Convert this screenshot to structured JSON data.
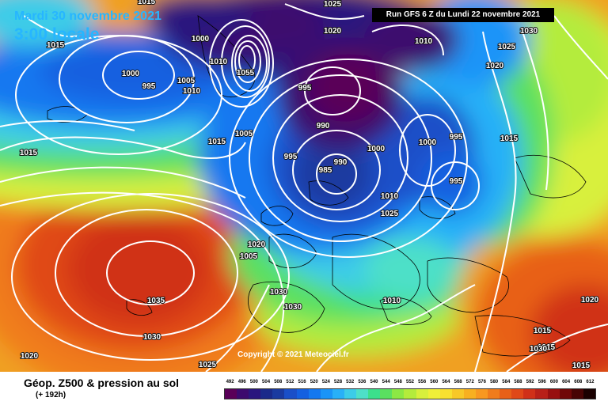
{
  "header": {
    "date": "Mardi 30 novembre 2021",
    "time": "3:00 locale",
    "run": "Run GFS 6 Z du Lundi 22 novembre 2021"
  },
  "copyright": "Copyright © 2021 Meteociel.fr",
  "footer": {
    "title": "Géop. Z500 & pression au sol",
    "subtitle": "(+ 192h)"
  },
  "legend": {
    "values": [
      "492",
      "496",
      "500",
      "504",
      "508",
      "512",
      "516",
      "520",
      "524",
      "528",
      "532",
      "536",
      "540",
      "544",
      "548",
      "552",
      "556",
      "560",
      "564",
      "568",
      "572",
      "576",
      "580",
      "584",
      "588",
      "592",
      "596",
      "600",
      "604",
      "608",
      "612"
    ],
    "colors": [
      "#5a0058",
      "#3c0a6e",
      "#2a167e",
      "#1a2a8a",
      "#1a3aa0",
      "#1a4fc8",
      "#1460e0",
      "#1478f0",
      "#1a94f8",
      "#28b0f8",
      "#3ccce8",
      "#4ee0c8",
      "#3ce08c",
      "#5ae060",
      "#8ce844",
      "#b4ec3c",
      "#d8f03c",
      "#f0f038",
      "#f8e030",
      "#f8c828",
      "#f8b020",
      "#f89820",
      "#f07c1c",
      "#e86018",
      "#e04818",
      "#d03018",
      "#b82018",
      "#981010",
      "#700808",
      "#480404",
      "#1a0000"
    ]
  },
  "isobars": [
    "1015",
    "1015",
    "1025",
    "1020",
    "1010",
    "1030",
    "1000",
    "995",
    "1005",
    "1010",
    "1025",
    "1000",
    "1055",
    "995",
    "990",
    "1020",
    "1010",
    "1015",
    "1005",
    "995",
    "995",
    "1000",
    "985",
    "990",
    "1000",
    "995",
    "1015",
    "1015",
    "1020",
    "1005",
    "1010",
    "1025",
    "1035",
    "1030",
    "1030",
    "1030",
    "1010",
    "1020",
    "1020",
    "1015",
    "1015",
    "1015",
    "1030",
    "1025"
  ]
}
